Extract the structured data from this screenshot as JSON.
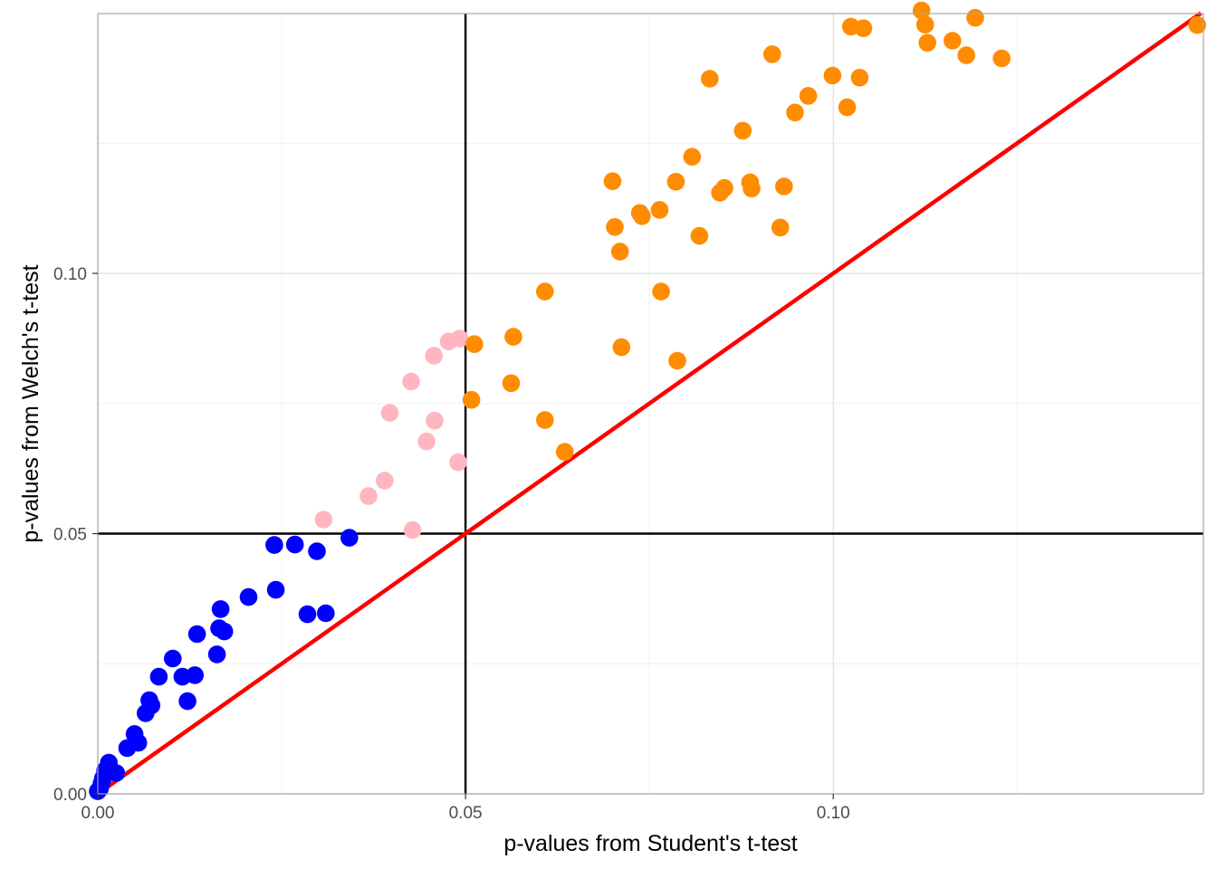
{
  "chart_data": {
    "type": "scatter",
    "xlabel": "p-values from Student's t-test",
    "ylabel": "p-values from Welch's t-test",
    "xlim": [
      0,
      0.15
    ],
    "ylim": [
      0,
      0.15
    ],
    "x_ticks": [
      {
        "value": 0.0,
        "label": "0.00"
      },
      {
        "value": 0.05,
        "label": "0.05"
      },
      {
        "value": 0.1,
        "label": "0.10"
      }
    ],
    "y_ticks": [
      {
        "value": 0.0,
        "label": "0.00"
      },
      {
        "value": 0.05,
        "label": "0.05"
      },
      {
        "value": 0.1,
        "label": "0.10"
      }
    ],
    "minor_breaks": [
      0.025,
      0.075,
      0.125
    ],
    "grid": true,
    "reference_lines": {
      "vertical_x": 0.05,
      "horizontal_y": 0.05,
      "diagonal": {
        "slope": 1,
        "intercept": 0,
        "color": "#ff0000"
      }
    },
    "series": [
      {
        "color": "#0000ff",
        "points": [
          [
            0.0,
            0.0005
          ],
          [
            0.0003,
            0.001
          ],
          [
            0.0005,
            0.002
          ],
          [
            0.0007,
            0.003
          ],
          [
            0.001,
            0.0045
          ],
          [
            0.0015,
            0.006
          ],
          [
            0.0025,
            0.004
          ],
          [
            0.004,
            0.0088
          ],
          [
            0.005,
            0.0115
          ],
          [
            0.0055,
            0.0098
          ],
          [
            0.0065,
            0.0155
          ],
          [
            0.007,
            0.018
          ],
          [
            0.0073,
            0.017
          ],
          [
            0.0083,
            0.0225
          ],
          [
            0.0102,
            0.026
          ],
          [
            0.0115,
            0.0225
          ],
          [
            0.0122,
            0.0178
          ],
          [
            0.0132,
            0.0228
          ],
          [
            0.0135,
            0.0307
          ],
          [
            0.0162,
            0.0268
          ],
          [
            0.0165,
            0.0318
          ],
          [
            0.0167,
            0.0355
          ],
          [
            0.0172,
            0.0312
          ],
          [
            0.0205,
            0.0378
          ],
          [
            0.024,
            0.0478
          ],
          [
            0.0242,
            0.0392
          ],
          [
            0.0268,
            0.0479
          ],
          [
            0.0285,
            0.0345
          ],
          [
            0.0298,
            0.0466
          ],
          [
            0.031,
            0.0347
          ],
          [
            0.0342,
            0.0492
          ]
        ]
      },
      {
        "color": "#ffb6c1",
        "points": [
          [
            0.0307,
            0.0527
          ],
          [
            0.0368,
            0.0572
          ],
          [
            0.039,
            0.0602
          ],
          [
            0.0397,
            0.0732
          ],
          [
            0.0428,
            0.0507
          ],
          [
            0.0426,
            0.0792
          ],
          [
            0.0447,
            0.0677
          ],
          [
            0.0458,
            0.0717
          ],
          [
            0.0457,
            0.0842
          ],
          [
            0.0477,
            0.0869
          ],
          [
            0.049,
            0.0637
          ],
          [
            0.0492,
            0.0875
          ]
        ]
      },
      {
        "color": "#ff8c00",
        "points": [
          [
            0.0512,
            0.0864
          ],
          [
            0.0508,
            0.0757
          ],
          [
            0.0565,
            0.0878
          ],
          [
            0.0562,
            0.0789
          ],
          [
            0.0608,
            0.0965
          ],
          [
            0.0608,
            0.0718
          ],
          [
            0.0635,
            0.0657
          ],
          [
            0.07,
            0.1177
          ],
          [
            0.0703,
            0.1089
          ],
          [
            0.071,
            0.1042
          ],
          [
            0.0712,
            0.0858
          ],
          [
            0.0737,
            0.1116
          ],
          [
            0.074,
            0.111
          ],
          [
            0.0764,
            0.1122
          ],
          [
            0.0766,
            0.0965
          ],
          [
            0.0786,
            0.1176
          ],
          [
            0.0788,
            0.0832
          ],
          [
            0.0808,
            0.1224
          ],
          [
            0.0818,
            0.1072
          ],
          [
            0.0832,
            0.1374
          ],
          [
            0.0846,
            0.1155
          ],
          [
            0.0852,
            0.1164
          ],
          [
            0.0877,
            0.1274
          ],
          [
            0.0887,
            0.1175
          ],
          [
            0.0889,
            0.1163
          ],
          [
            0.0917,
            0.1421
          ],
          [
            0.0928,
            0.1088
          ],
          [
            0.0933,
            0.1167
          ],
          [
            0.0948,
            0.1309
          ],
          [
            0.0966,
            0.1341
          ],
          [
            0.0999,
            0.138
          ],
          [
            0.1019,
            0.1319
          ],
          [
            0.1024,
            0.1474
          ],
          [
            0.1036,
            0.1376
          ],
          [
            0.1041,
            0.1471
          ],
          [
            0.112,
            0.1505
          ],
          [
            0.1125,
            0.1478
          ],
          [
            0.1128,
            0.1443
          ],
          [
            0.1162,
            0.1447
          ],
          [
            0.1181,
            0.1419
          ],
          [
            0.1193,
            0.1491
          ],
          [
            0.1229,
            0.1413
          ],
          [
            0.1495,
            0.1477
          ]
        ]
      }
    ]
  }
}
